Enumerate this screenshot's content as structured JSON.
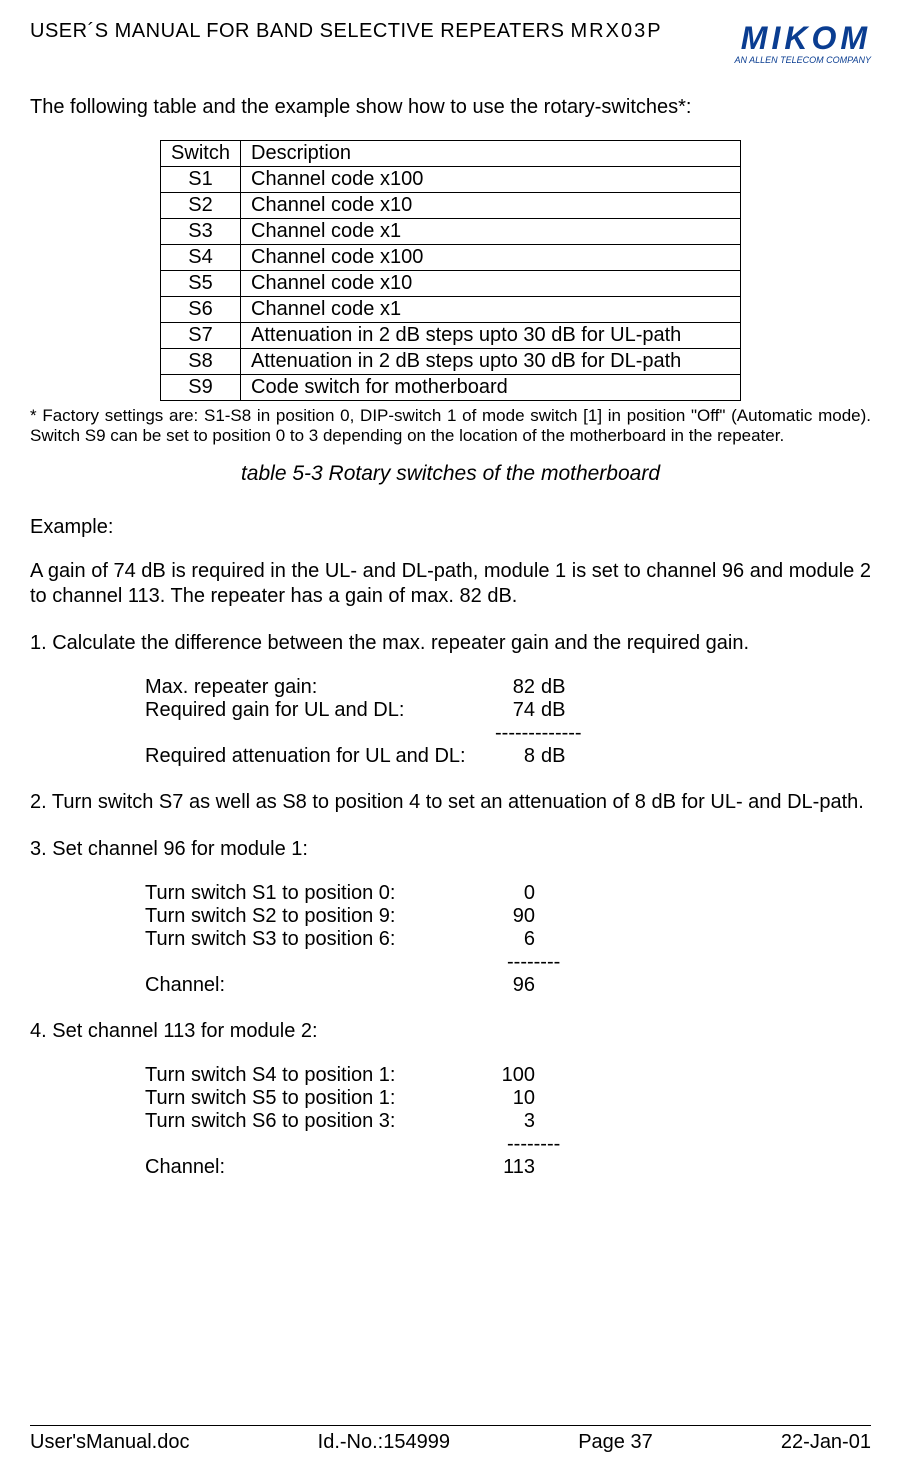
{
  "header": {
    "title_prefix": "USER´S MANUAL FOR BAND SELECTIVE REPEATERS ",
    "model": "MRX03P",
    "logo_text": "MIKOM",
    "logo_sub": "AN ALLEN TELECOM COMPANY"
  },
  "intro": "The following table and the example show how to use the rotary-switches*:",
  "switch_table": {
    "header": {
      "col1": "Switch",
      "col2": "Description"
    },
    "rows": [
      {
        "sw": "S1",
        "desc": "Channel code x100"
      },
      {
        "sw": "S2",
        "desc": "Channel code x10"
      },
      {
        "sw": "S3",
        "desc": "Channel code x1"
      },
      {
        "sw": "S4",
        "desc": "Channel code x100"
      },
      {
        "sw": "S5",
        "desc": "Channel code x10"
      },
      {
        "sw": "S6",
        "desc": "Channel code x1"
      },
      {
        "sw": "S7",
        "desc": "Attenuation in 2 dB steps upto 30 dB for UL-path"
      },
      {
        "sw": "S8",
        "desc": "Attenuation in 2 dB steps upto 30 dB for DL-path"
      },
      {
        "sw": "S9",
        "desc": "Code switch for motherboard"
      }
    ]
  },
  "footnote": "* Factory settings are: S1-S8 in position 0, DIP-switch 1 of mode switch [1] in position \"Off\"  (Automatic mode). Switch S9 can be set to position 0 to 3 depending on the location of the motherboard in the repeater.",
  "table_caption": "table 5-3 Rotary switches of the motherboard",
  "example": {
    "heading": "Example:",
    "intro": "A gain of 74 dB is required in the UL- and DL-path, module 1 is set to channel 96 and module 2 to channel 113. The repeater has a gain of max. 82 dB.",
    "step1": {
      "title": "1. Calculate the difference between the max. repeater gain and the required gain.",
      "rows": [
        {
          "label": "Max. repeater gain:",
          "val": "82",
          "unit": "dB"
        },
        {
          "label": "Required gain for UL and DL:",
          "val": "74",
          "unit": "dB"
        }
      ],
      "sep": "-------------",
      "result": {
        "label": "Required attenuation for UL and DL:",
        "val": "8",
        "unit": "dB"
      }
    },
    "step2": "2. Turn switch S7 as well as S8 to position 4 to set an attenuation of 8 dB for UL- and DL-path.",
    "step3": {
      "title": "3. Set channel 96 for module 1:",
      "rows": [
        {
          "label": "Turn switch S1 to position 0:",
          "val": "0"
        },
        {
          "label": "Turn switch S2 to position 9:",
          "val": "90"
        },
        {
          "label": "Turn switch S3 to position 6:",
          "val": "6"
        }
      ],
      "sep": "--------",
      "result": {
        "label": "Channel:",
        "val": "96"
      }
    },
    "step4": {
      "title": "4. Set channel 113 for module 2:",
      "rows": [
        {
          "label": "Turn switch S4 to position 1:",
          "val": "100"
        },
        {
          "label": "Turn switch S5 to position 1:",
          "val": "10"
        },
        {
          "label": "Turn switch S6 to position 3:",
          "val": "3"
        }
      ],
      "sep": "--------",
      "result": {
        "label": "Channel:",
        "val": "113"
      }
    }
  },
  "footer": {
    "left": "User'sManual.doc",
    "id": "Id.-No.:154999",
    "page": "Page 37",
    "date": "22-Jan-01"
  }
}
